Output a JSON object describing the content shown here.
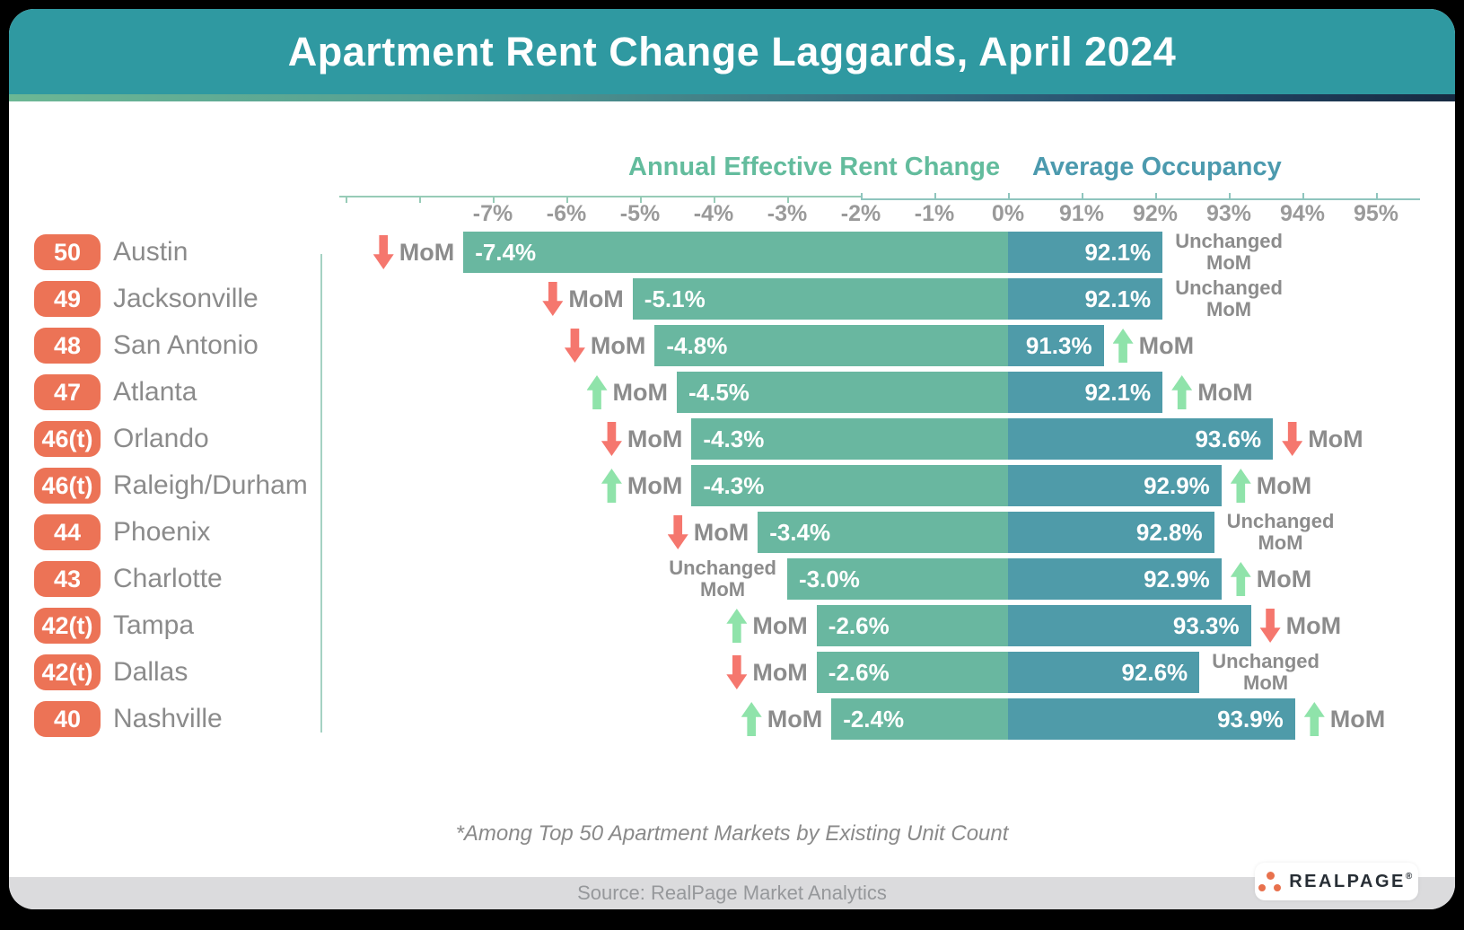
{
  "title": "Apartment Rent Change Laggards, April 2024",
  "footnote": "*Among Top 50 Apartment Markets by Existing Unit Count",
  "source": "Source: RealPage Market Analytics",
  "logo": {
    "brand": "REALPAGE",
    "registered": "®"
  },
  "colors": {
    "header_teal": "#2F99A1",
    "rent_bar_green": "#69B7A0",
    "occupancy_bar_teal": "#4F9BA9",
    "rank_badge_orange": "#EC7356",
    "up_arrow_green": "#8FE3AA",
    "down_arrow_red": "#F5776E"
  },
  "chart_data": {
    "type": "bar",
    "title": "Apartment Rent Change Laggards, April 2024",
    "axis": {
      "rent_title": "Annual Effective Rent Change",
      "occupancy_title": "Average Occupancy",
      "rent_ticks": [
        "-7%",
        "-6%",
        "-5%",
        "-4%",
        "-3%",
        "-2%",
        "-1%",
        "0%"
      ],
      "occupancy_ticks": [
        "91%",
        "92%",
        "93%",
        "94%",
        "95%"
      ],
      "rent_range": [
        -9,
        0
      ],
      "occupancy_range": [
        90,
        95
      ]
    },
    "mom_label": "MoM",
    "unchanged_lines": [
      "Unchanged",
      "MoM"
    ],
    "rows": [
      {
        "rank": "50",
        "market": "Austin",
        "rent_change_pct": -7.4,
        "rent_label": "-7.4%",
        "rent_mom": "down",
        "occupancy_pct": 92.1,
        "occupancy_label": "92.1%",
        "occupancy_mom": "unchanged"
      },
      {
        "rank": "49",
        "market": "Jacksonville",
        "rent_change_pct": -5.1,
        "rent_label": "-5.1%",
        "rent_mom": "down",
        "occupancy_pct": 92.1,
        "occupancy_label": "92.1%",
        "occupancy_mom": "unchanged"
      },
      {
        "rank": "48",
        "market": "San Antonio",
        "rent_change_pct": -4.8,
        "rent_label": "-4.8%",
        "rent_mom": "down",
        "occupancy_pct": 91.3,
        "occupancy_label": "91.3%",
        "occupancy_mom": "up"
      },
      {
        "rank": "47",
        "market": "Atlanta",
        "rent_change_pct": -4.5,
        "rent_label": "-4.5%",
        "rent_mom": "up",
        "occupancy_pct": 92.1,
        "occupancy_label": "92.1%",
        "occupancy_mom": "up"
      },
      {
        "rank": "46(t)",
        "market": "Orlando",
        "rent_change_pct": -4.3,
        "rent_label": "-4.3%",
        "rent_mom": "down",
        "occupancy_pct": 93.6,
        "occupancy_label": "93.6%",
        "occupancy_mom": "down"
      },
      {
        "rank": "46(t)",
        "market": "Raleigh/Durham",
        "rent_change_pct": -4.3,
        "rent_label": "-4.3%",
        "rent_mom": "up",
        "occupancy_pct": 92.9,
        "occupancy_label": "92.9%",
        "occupancy_mom": "up"
      },
      {
        "rank": "44",
        "market": "Phoenix",
        "rent_change_pct": -3.4,
        "rent_label": "-3.4%",
        "rent_mom": "down",
        "occupancy_pct": 92.8,
        "occupancy_label": "92.8%",
        "occupancy_mom": "unchanged"
      },
      {
        "rank": "43",
        "market": "Charlotte",
        "rent_change_pct": -3.0,
        "rent_label": "-3.0%",
        "rent_mom": "unchanged",
        "occupancy_pct": 92.9,
        "occupancy_label": "92.9%",
        "occupancy_mom": "up"
      },
      {
        "rank": "42(t)",
        "market": "Tampa",
        "rent_change_pct": -2.6,
        "rent_label": "-2.6%",
        "rent_mom": "up",
        "occupancy_pct": 93.3,
        "occupancy_label": "93.3%",
        "occupancy_mom": "down"
      },
      {
        "rank": "42(t)",
        "market": "Dallas",
        "rent_change_pct": -2.6,
        "rent_label": "-2.6%",
        "rent_mom": "down",
        "occupancy_pct": 92.6,
        "occupancy_label": "92.6%",
        "occupancy_mom": "unchanged"
      },
      {
        "rank": "40",
        "market": "Nashville",
        "rent_change_pct": -2.4,
        "rent_label": "-2.4%",
        "rent_mom": "up",
        "occupancy_pct": 93.9,
        "occupancy_label": "93.9%",
        "occupancy_mom": "up"
      }
    ]
  }
}
